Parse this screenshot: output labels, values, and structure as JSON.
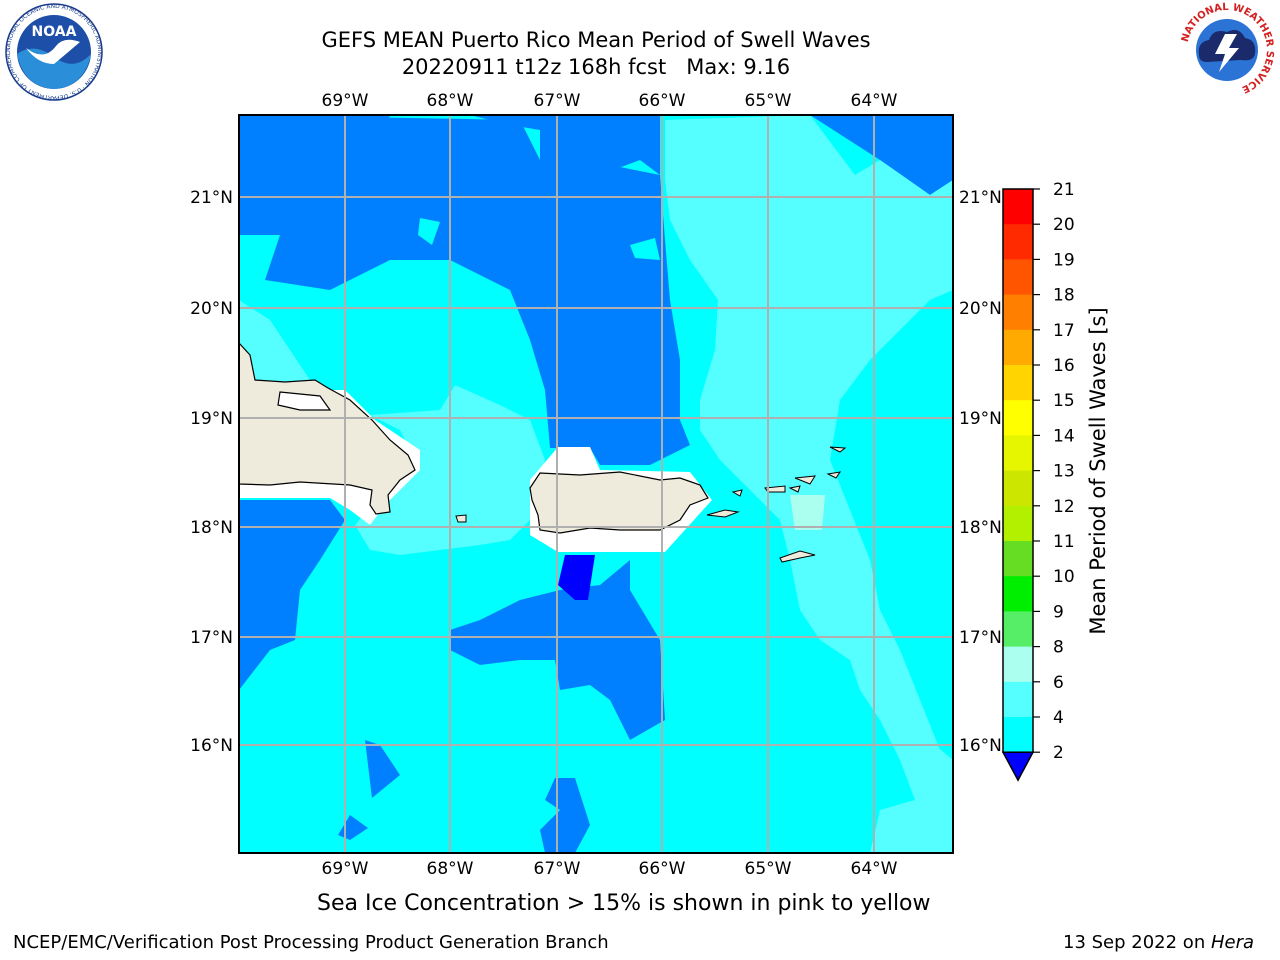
{
  "header": {
    "title_line1": "GEFS MEAN Puerto Rico Mean Period of Swell Waves",
    "title_line2": "20220911 t12z 168h fcst   Max: 9.16"
  },
  "logos": {
    "noaa_text": "NOAA",
    "noaa_ring_text": "NATIONAL OCEANIC AND ATMOSPHERIC ADMINISTRATION · U.S. DEPARTMENT OF COMMERCE",
    "nws_ring_text": "NATIONAL WEATHER SERVICE"
  },
  "map": {
    "lon_labels": [
      "69°W",
      "68°W",
      "67°W",
      "66°W",
      "65°W",
      "64°W"
    ],
    "lat_labels": [
      "21°N",
      "20°N",
      "19°N",
      "18°N",
      "17°N",
      "16°N"
    ]
  },
  "colorbar": {
    "label": "Mean Period of Swell Waves [s]",
    "ticks": [
      "21",
      "20",
      "19",
      "18",
      "17",
      "16",
      "15",
      "14",
      "13",
      "12",
      "11",
      "10",
      "9",
      "8",
      "6",
      "4",
      "2"
    ],
    "colors": [
      "#ff0000",
      "#ff2a00",
      "#ff5500",
      "#ff8000",
      "#ffaa00",
      "#ffd400",
      "#ffff00",
      "#e6f500",
      "#cce600",
      "#b3f000",
      "#66dd22",
      "#00ee00",
      "#55ee66",
      "#aaffee",
      "#55ffff",
      "#00ffff",
      "#0080ff",
      "#0000ff"
    ],
    "under_color": "#0000ff"
  },
  "caption": "Sea Ice Concentration > 15% is shown in pink to yellow",
  "footer": {
    "left": "NCEP/EMC/Verification Post Processing Product Generation Branch",
    "right_date": "13 Sep 2022 on ",
    "right_host": "Hera"
  }
}
